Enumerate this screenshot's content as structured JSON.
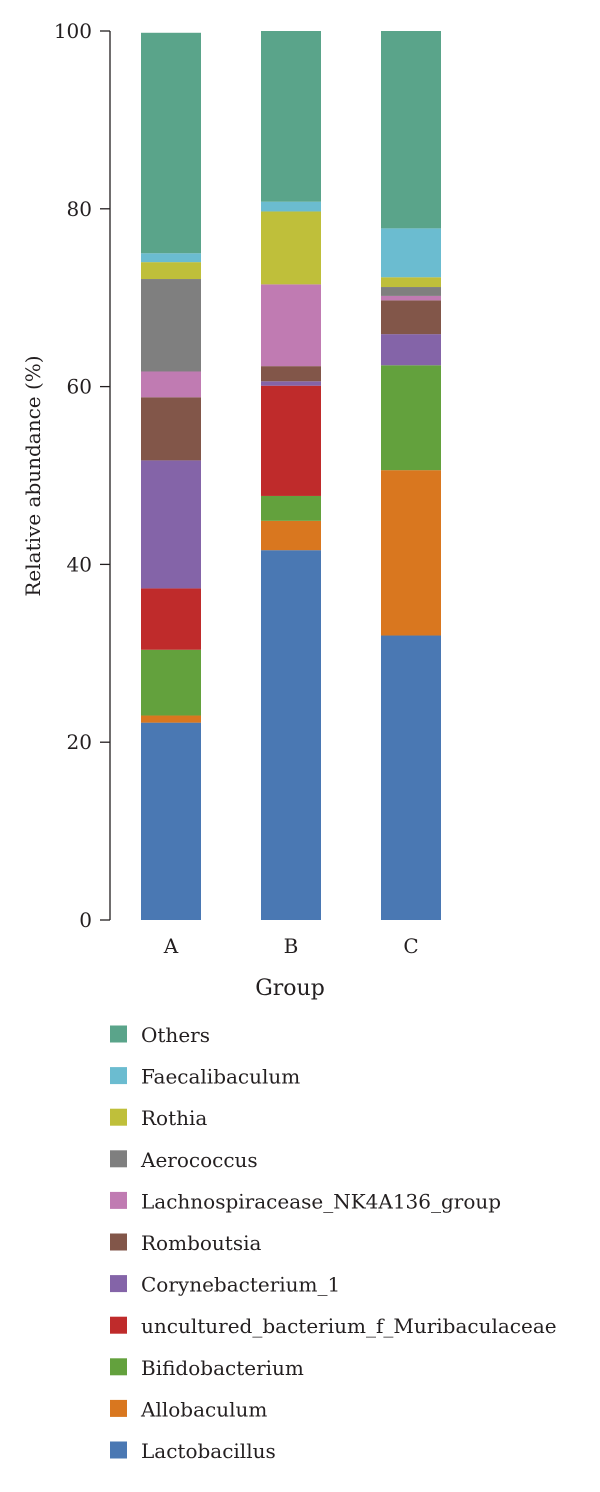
{
  "chart_data": {
    "type": "bar",
    "stacked": true,
    "categories": [
      "A",
      "B",
      "C"
    ],
    "xlabel": "Group",
    "ylabel": "Relative abundance (%)",
    "ylim": [
      0,
      100
    ],
    "yticks": [
      0,
      20,
      40,
      60,
      80,
      100
    ],
    "legend_position": "bottom",
    "series": [
      {
        "name": "Lactobacillus",
        "color": "#4a78b3",
        "values": [
          22.2,
          41.6,
          32.0
        ]
      },
      {
        "name": "Allobaculum",
        "color": "#d9771f",
        "values": [
          0.8,
          3.3,
          18.6
        ]
      },
      {
        "name": "Bifidobacterium",
        "color": "#63a13d",
        "values": [
          7.4,
          2.8,
          11.8
        ]
      },
      {
        "name": "uncultured_bacterium_f_Muribaculaceae",
        "color": "#bf2b2b",
        "values": [
          6.9,
          12.4,
          0.0
        ]
      },
      {
        "name": "Corynebacterium_1",
        "color": "#8464a8",
        "values": [
          14.4,
          0.5,
          3.5
        ]
      },
      {
        "name": "Romboutsia",
        "color": "#825649",
        "values": [
          7.1,
          1.7,
          3.8
        ]
      },
      {
        "name": "Lachnospiracease_NK4A136_group",
        "color": "#c07bb2",
        "values": [
          2.9,
          9.2,
          0.5
        ]
      },
      {
        "name": "Aerococcus",
        "color": "#7f7f7f",
        "values": [
          10.4,
          0.0,
          1.0
        ]
      },
      {
        "name": "Rothia",
        "color": "#bfbf3a",
        "values": [
          1.9,
          8.2,
          1.1
        ]
      },
      {
        "name": "Faecalibaculum",
        "color": "#6bbcd0",
        "values": [
          1.0,
          1.1,
          5.5
        ]
      },
      {
        "name": "Others",
        "color": "#5aa48a",
        "values": [
          24.8,
          19.2,
          22.2
        ]
      }
    ]
  }
}
